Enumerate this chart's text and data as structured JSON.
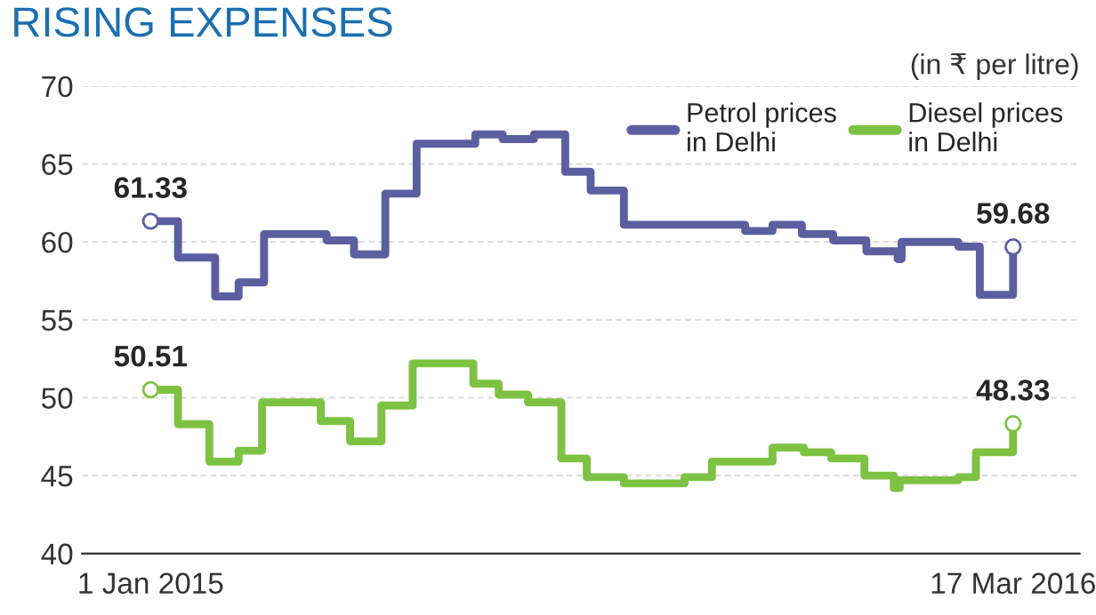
{
  "chart_data": {
    "type": "step",
    "title": "RISING EXPENSES",
    "annotations": [
      "(in ₹ per litre)"
    ],
    "series": [
      {
        "name": "Petrol prices\nin Delhi",
        "color": "#5b5fa0",
        "x": [
          "2015-01-01",
          "2015-01-15",
          "2015-02-03",
          "2015-02-15",
          "2015-02-28",
          "2015-04-01",
          "2015-04-15",
          "2015-05-01",
          "2015-05-17",
          "2015-06-16",
          "2015-06-30",
          "2015-07-16",
          "2015-08-01",
          "2015-08-14",
          "2015-08-31",
          "2015-11-01",
          "2015-11-15",
          "2015-11-30",
          "2015-12-16",
          "2016-01-02",
          "2016-01-18",
          "2016-01-20",
          "2016-02-18",
          "2016-02-29",
          "2016-03-17"
        ],
        "values": [
          61.33,
          59.0,
          56.5,
          57.4,
          60.5,
          60.1,
          59.2,
          63.1,
          66.3,
          66.9,
          66.6,
          66.9,
          64.5,
          63.3,
          61.1,
          60.7,
          61.1,
          60.5,
          60.1,
          59.4,
          58.9,
          60.0,
          59.7,
          56.6,
          59.68
        ],
        "value_labels": [
          "61.33",
          null,
          null,
          null,
          null,
          null,
          null,
          null,
          null,
          null,
          null,
          null,
          null,
          null,
          null,
          null,
          null,
          null,
          null,
          null,
          null,
          null,
          null,
          null,
          "59.68"
        ]
      },
      {
        "name": "Diesel prices\nin Delhi",
        "color": "#7dc242",
        "x": [
          "2015-01-01",
          "2015-01-15",
          "2015-01-31",
          "2015-02-15",
          "2015-02-27",
          "2015-03-29",
          "2015-04-13",
          "2015-04-29",
          "2015-05-15",
          "2015-06-15",
          "2015-06-28",
          "2015-07-13",
          "2015-07-30",
          "2015-08-12",
          "2015-08-31",
          "2015-10-01",
          "2015-10-15",
          "2015-11-15",
          "2015-12-01",
          "2015-12-15",
          "2016-01-01",
          "2016-01-16",
          "2016-01-19",
          "2016-02-18",
          "2016-02-27",
          "2016-03-17"
        ],
        "values": [
          50.51,
          48.3,
          45.9,
          46.6,
          49.7,
          48.5,
          47.2,
          49.5,
          52.2,
          50.9,
          50.2,
          49.7,
          46.1,
          44.9,
          44.5,
          44.9,
          45.9,
          46.8,
          46.5,
          46.1,
          45.0,
          44.2,
          44.7,
          44.9,
          46.5,
          48.33
        ],
        "value_labels": [
          "50.51",
          null,
          null,
          null,
          null,
          null,
          null,
          null,
          null,
          null,
          null,
          null,
          null,
          null,
          null,
          null,
          null,
          null,
          null,
          null,
          null,
          null,
          null,
          null,
          null,
          "48.33"
        ]
      }
    ],
    "xlim": [
      "2014-11-27",
      "2016-04-20"
    ],
    "xticks": [
      {
        "value": "2015-01-01",
        "label": "1 Jan 2015"
      },
      {
        "value": "2016-03-17",
        "label": "17 Mar 2016"
      }
    ],
    "ylim": [
      40,
      70
    ],
    "yticks": [
      40,
      45,
      50,
      55,
      60,
      65,
      70
    ],
    "grid": "y",
    "legend": "top right"
  }
}
